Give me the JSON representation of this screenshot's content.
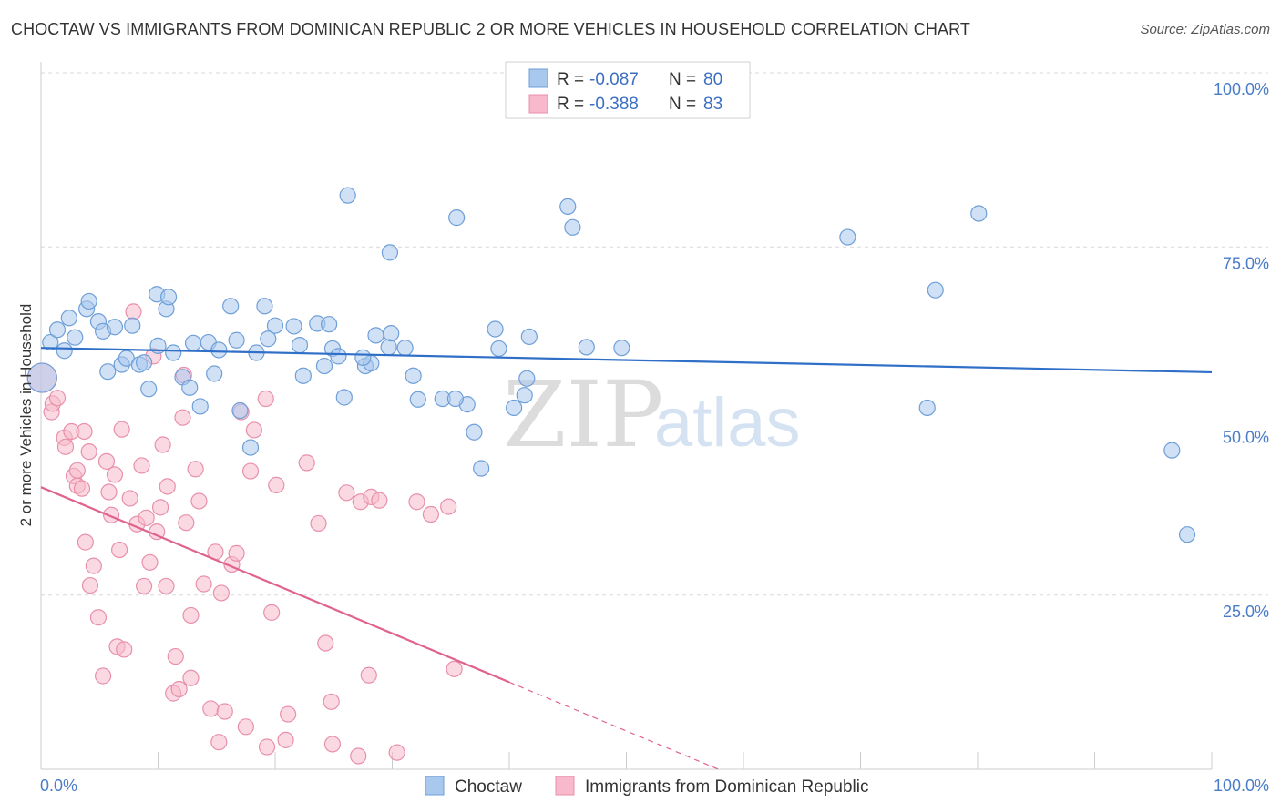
{
  "title": "CHOCTAW VS IMMIGRANTS FROM DOMINICAN REPUBLIC 2 OR MORE VEHICLES IN HOUSEHOLD CORRELATION CHART",
  "source": "Source: ZipAtlas.com",
  "watermark": {
    "zip": "ZIP",
    "atlas": "atlas"
  },
  "colors": {
    "choctaw_fill": "#a9c8ee",
    "choctaw_stroke": "#6f9fd8",
    "choctaw_line": "#2f6fc7",
    "dominican_fill": "#f7b9cb",
    "dominican_stroke": "#e890ab",
    "dominican_line": "#e0628e",
    "grid": "#d8d8d8",
    "tick_text": "#4a7cc9"
  },
  "legend": {
    "rows": [
      {
        "r_label": "R = ",
        "r_value": "-0.087",
        "n_label": "N = ",
        "n_value": "80"
      },
      {
        "r_label": "R = ",
        "r_value": "-0.388",
        "n_label": "N = ",
        "n_value": "83"
      }
    ]
  },
  "chart_data": {
    "type": "scatter",
    "xlabel": "",
    "ylabel": "2 or more Vehicles in Household",
    "xlim": [
      0,
      100
    ],
    "ylim": [
      0,
      100
    ],
    "x_tick_labels": [
      "0.0%",
      "100.0%"
    ],
    "y_tick_labels": [
      "25.0%",
      "50.0%",
      "75.0%",
      "100.0%"
    ],
    "y_ticks": [
      25,
      50,
      75,
      100
    ],
    "grid": true,
    "legend_position": "top-center",
    "series": [
      {
        "name": "Choctaw",
        "trend": {
          "x": [
            0,
            100
          ],
          "y": [
            60.5,
            57.0
          ],
          "dashed_from": null
        },
        "points": [
          [
            0.1,
            56.2
          ],
          [
            0.8,
            61.3
          ],
          [
            1.4,
            63.1
          ],
          [
            2.0,
            60.1
          ],
          [
            2.4,
            64.8
          ],
          [
            2.9,
            62.0
          ],
          [
            3.9,
            66.1
          ],
          [
            4.1,
            67.2
          ],
          [
            4.9,
            64.3
          ],
          [
            5.3,
            62.9
          ],
          [
            5.7,
            57.1
          ],
          [
            6.3,
            63.5
          ],
          [
            6.9,
            58.1
          ],
          [
            7.3,
            59.0
          ],
          [
            7.8,
            63.7
          ],
          [
            8.4,
            58.1
          ],
          [
            8.8,
            58.4
          ],
          [
            9.2,
            54.6
          ],
          [
            9.9,
            68.2
          ],
          [
            10.0,
            60.8
          ],
          [
            10.7,
            66.1
          ],
          [
            10.9,
            67.8
          ],
          [
            11.3,
            59.8
          ],
          [
            12.1,
            56.3
          ],
          [
            12.7,
            54.8
          ],
          [
            13.0,
            61.2
          ],
          [
            13.6,
            52.1
          ],
          [
            14.3,
            61.3
          ],
          [
            14.8,
            56.8
          ],
          [
            15.2,
            60.2
          ],
          [
            16.2,
            66.5
          ],
          [
            16.7,
            61.6
          ],
          [
            17.0,
            51.5
          ],
          [
            18.4,
            59.8
          ],
          [
            17.9,
            46.2
          ],
          [
            19.1,
            66.5
          ],
          [
            19.4,
            61.8
          ],
          [
            20.0,
            63.7
          ],
          [
            21.6,
            63.6
          ],
          [
            22.4,
            56.5
          ],
          [
            22.1,
            60.9
          ],
          [
            23.6,
            64.0
          ],
          [
            24.6,
            63.9
          ],
          [
            24.9,
            60.4
          ],
          [
            25.4,
            59.3
          ],
          [
            25.9,
            53.4
          ],
          [
            24.2,
            57.9
          ],
          [
            27.7,
            57.9
          ],
          [
            28.2,
            58.3
          ],
          [
            29.7,
            60.6
          ],
          [
            26.2,
            82.4
          ],
          [
            27.5,
            59.1
          ],
          [
            28.6,
            62.3
          ],
          [
            29.9,
            62.6
          ],
          [
            31.1,
            60.5
          ],
          [
            29.8,
            74.2
          ],
          [
            31.8,
            56.5
          ],
          [
            32.2,
            53.1
          ],
          [
            34.3,
            53.2
          ],
          [
            35.5,
            79.2
          ],
          [
            36.4,
            52.4
          ],
          [
            35.4,
            53.2
          ],
          [
            37.0,
            48.4
          ],
          [
            37.6,
            43.2
          ],
          [
            38.8,
            63.2
          ],
          [
            39.1,
            60.4
          ],
          [
            40.4,
            51.9
          ],
          [
            41.3,
            53.7
          ],
          [
            41.7,
            62.1
          ],
          [
            41.5,
            56.1
          ],
          [
            45.0,
            80.8
          ],
          [
            46.6,
            60.6
          ],
          [
            49.6,
            60.5
          ],
          [
            45.4,
            77.8
          ],
          [
            68.9,
            76.4
          ],
          [
            75.7,
            51.9
          ],
          [
            76.4,
            68.8
          ],
          [
            80.1,
            79.8
          ],
          [
            96.6,
            45.8
          ],
          [
            97.9,
            33.7
          ]
        ]
      },
      {
        "name": "Immigrants from Dominican Republic",
        "trend": {
          "x": [
            0,
            100
          ],
          "y": [
            40.5,
            -29.5
          ],
          "dashed_from": 40
        },
        "points": [
          [
            0.1,
            56.2
          ],
          [
            0.9,
            51.3
          ],
          [
            1.0,
            52.5
          ],
          [
            1.4,
            53.3
          ],
          [
            2.0,
            47.6
          ],
          [
            2.1,
            46.3
          ],
          [
            2.6,
            48.5
          ],
          [
            2.8,
            42.1
          ],
          [
            3.1,
            42.9
          ],
          [
            3.1,
            40.7
          ],
          [
            3.5,
            40.3
          ],
          [
            3.7,
            48.5
          ],
          [
            3.8,
            32.6
          ],
          [
            4.1,
            45.6
          ],
          [
            4.2,
            26.4
          ],
          [
            4.5,
            29.2
          ],
          [
            4.9,
            21.8
          ],
          [
            5.3,
            13.4
          ],
          [
            5.6,
            44.2
          ],
          [
            5.8,
            39.8
          ],
          [
            6.0,
            36.5
          ],
          [
            6.3,
            42.3
          ],
          [
            6.5,
            17.6
          ],
          [
            6.7,
            31.5
          ],
          [
            6.9,
            48.8
          ],
          [
            7.1,
            17.2
          ],
          [
            7.6,
            38.9
          ],
          [
            7.9,
            65.7
          ],
          [
            8.2,
            35.2
          ],
          [
            8.6,
            43.6
          ],
          [
            8.8,
            26.3
          ],
          [
            9.0,
            36.1
          ],
          [
            9.3,
            29.7
          ],
          [
            9.6,
            59.3
          ],
          [
            9.9,
            34.1
          ],
          [
            10.2,
            37.6
          ],
          [
            10.4,
            46.6
          ],
          [
            10.7,
            26.3
          ],
          [
            10.8,
            40.6
          ],
          [
            11.3,
            10.9
          ],
          [
            11.5,
            16.2
          ],
          [
            11.8,
            11.5
          ],
          [
            12.1,
            50.5
          ],
          [
            12.2,
            56.6
          ],
          [
            12.4,
            35.4
          ],
          [
            12.8,
            13.1
          ],
          [
            12.8,
            22.1
          ],
          [
            13.2,
            43.1
          ],
          [
            13.5,
            38.5
          ],
          [
            13.9,
            26.6
          ],
          [
            14.5,
            8.7
          ],
          [
            14.9,
            31.2
          ],
          [
            15.2,
            3.9
          ],
          [
            15.4,
            25.3
          ],
          [
            15.7,
            8.3
          ],
          [
            16.3,
            29.4
          ],
          [
            16.7,
            31.0
          ],
          [
            17.1,
            51.3
          ],
          [
            17.5,
            6.1
          ],
          [
            17.9,
            42.8
          ],
          [
            18.2,
            48.7
          ],
          [
            19.2,
            53.2
          ],
          [
            19.3,
            3.2
          ],
          [
            19.7,
            22.5
          ],
          [
            20.1,
            40.8
          ],
          [
            20.9,
            4.2
          ],
          [
            21.1,
            7.9
          ],
          [
            22.7,
            44.0
          ],
          [
            23.7,
            35.3
          ],
          [
            24.3,
            18.1
          ],
          [
            24.8,
            9.7
          ],
          [
            24.9,
            3.6
          ],
          [
            26.1,
            39.7
          ],
          [
            27.1,
            1.9
          ],
          [
            27.3,
            38.4
          ],
          [
            28.0,
            13.5
          ],
          [
            28.2,
            39.1
          ],
          [
            28.9,
            38.6
          ],
          [
            30.4,
            2.4
          ],
          [
            32.1,
            38.4
          ],
          [
            33.3,
            36.6
          ],
          [
            34.8,
            37.7
          ],
          [
            35.3,
            14.4
          ]
        ]
      }
    ]
  }
}
